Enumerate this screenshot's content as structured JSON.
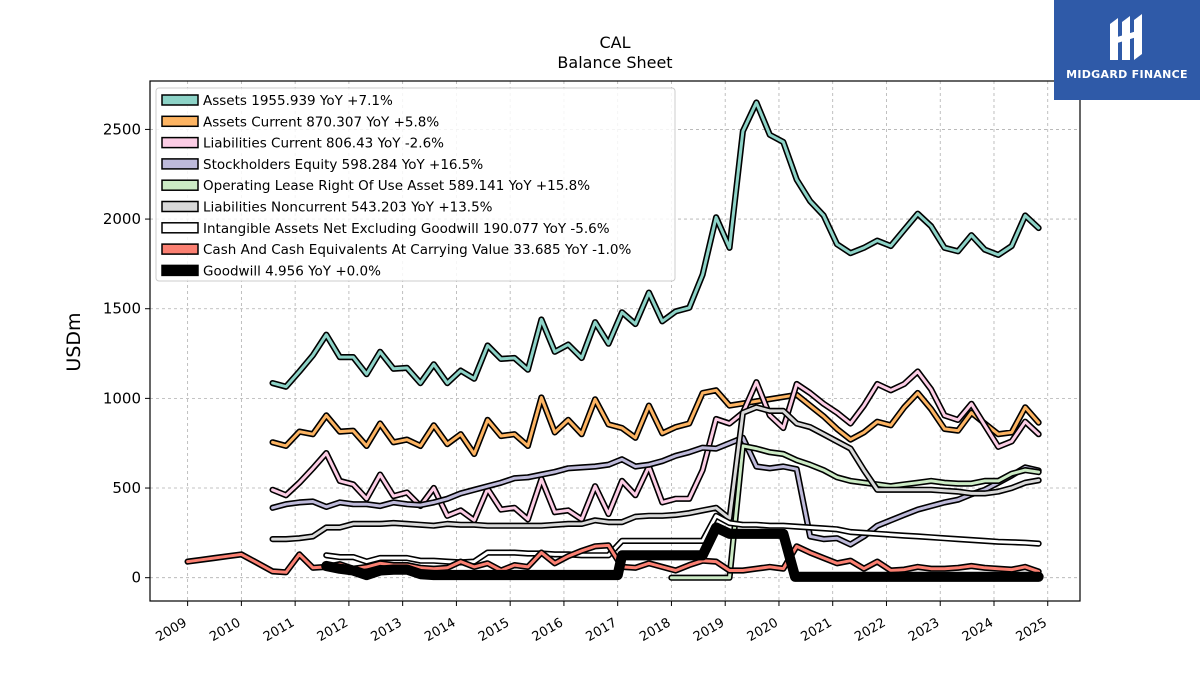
{
  "chart_data": {
    "type": "line",
    "title": "CAL",
    "subtitle": "Balance  Sheet",
    "ylabel": "USDm",
    "xlim": [
      2008.3,
      2025.6
    ],
    "ylim": [
      -130,
      2770
    ],
    "yticks": [
      0,
      500,
      1000,
      1500,
      2000,
      2500
    ],
    "xticks": [
      "2009",
      "2010",
      "2011",
      "2012",
      "2013",
      "2014",
      "2015",
      "2016",
      "2017",
      "2018",
      "2019",
      "2020",
      "2021",
      "2022",
      "2023",
      "2024",
      "2025"
    ],
    "grid": true,
    "legend_position": "top-left",
    "series": [
      {
        "name": "Assets",
        "legend": "Assets  1955.939 YoY +7.1%",
        "color": "#8dd3c7",
        "width": 3,
        "x": [
          2010.58,
          2010.83,
          2011.08,
          2011.33,
          2011.58,
          2011.83,
          2012.08,
          2012.33,
          2012.58,
          2012.83,
          2013.08,
          2013.33,
          2013.58,
          2013.83,
          2014.08,
          2014.33,
          2014.58,
          2014.83,
          2015.08,
          2015.33,
          2015.58,
          2015.83,
          2016.08,
          2016.33,
          2016.58,
          2016.83,
          2017.08,
          2017.33,
          2017.58,
          2017.83,
          2018.08,
          2018.33,
          2018.58,
          2018.83,
          2019.08,
          2019.33,
          2019.58,
          2019.83,
          2020.08,
          2020.33,
          2020.58,
          2020.83,
          2021.08,
          2021.33,
          2021.58,
          2021.83,
          2022.08,
          2022.33,
          2022.58,
          2022.83,
          2023.08,
          2023.33,
          2023.58,
          2023.83,
          2024.08,
          2024.33,
          2024.58,
          2024.83
        ],
        "y": [
          1085,
          1065,
          1150,
          1240,
          1355,
          1230,
          1230,
          1135,
          1260,
          1165,
          1170,
          1085,
          1190,
          1085,
          1155,
          1110,
          1295,
          1220,
          1225,
          1160,
          1440,
          1260,
          1300,
          1225,
          1425,
          1305,
          1480,
          1415,
          1590,
          1430,
          1485,
          1505,
          1690,
          2010,
          1840,
          2490,
          2650,
          2470,
          2430,
          2220,
          2100,
          2020,
          1860,
          1810,
          1840,
          1880,
          1850,
          1940,
          2030,
          1960,
          1840,
          1820,
          1910,
          1830,
          1800,
          1850,
          2020,
          1950
        ]
      },
      {
        "name": "Assets Current",
        "legend": "Assets Current  870.307 YoY +5.8%",
        "color": "#fdb462",
        "width": 3,
        "x": [
          2010.58,
          2010.83,
          2011.08,
          2011.33,
          2011.58,
          2011.83,
          2012.08,
          2012.33,
          2012.58,
          2012.83,
          2013.08,
          2013.33,
          2013.58,
          2013.83,
          2014.08,
          2014.33,
          2014.58,
          2014.83,
          2015.08,
          2015.33,
          2015.58,
          2015.83,
          2016.08,
          2016.33,
          2016.58,
          2016.83,
          2017.08,
          2017.33,
          2017.58,
          2017.83,
          2018.08,
          2018.33,
          2018.58,
          2018.83,
          2019.08,
          2020.33,
          2020.58,
          2020.83,
          2021.08,
          2021.33,
          2021.58,
          2021.83,
          2022.08,
          2022.33,
          2022.58,
          2022.83,
          2023.08,
          2023.33,
          2023.58,
          2023.83,
          2024.08,
          2024.33,
          2024.58,
          2024.83
        ],
        "y": [
          755,
          735,
          815,
          800,
          905,
          815,
          820,
          735,
          860,
          755,
          770,
          735,
          850,
          745,
          800,
          690,
          880,
          790,
          800,
          735,
          1005,
          810,
          880,
          800,
          995,
          855,
          835,
          780,
          960,
          805,
          840,
          860,
          1030,
          1045,
          960,
          1020,
          960,
          900,
          830,
          770,
          810,
          870,
          850,
          950,
          1030,
          940,
          830,
          820,
          920,
          860,
          800,
          810,
          950,
          865
        ]
      },
      {
        "name": "Liabilities Current",
        "legend": "Liabilities Current  806.43 YoY -2.6%",
        "color": "#fccde5",
        "width": 3,
        "x": [
          2010.58,
          2010.83,
          2011.08,
          2011.33,
          2011.58,
          2011.83,
          2012.08,
          2012.33,
          2012.58,
          2012.83,
          2013.08,
          2013.33,
          2013.58,
          2013.83,
          2014.08,
          2014.33,
          2014.58,
          2014.83,
          2015.08,
          2015.33,
          2015.58,
          2015.83,
          2016.08,
          2016.33,
          2016.58,
          2016.83,
          2017.08,
          2017.33,
          2017.58,
          2017.83,
          2018.08,
          2018.33,
          2018.58,
          2018.83,
          2019.08,
          2019.33,
          2019.58,
          2019.83,
          2020.08,
          2020.33,
          2020.58,
          2020.83,
          2021.08,
          2021.33,
          2021.58,
          2021.83,
          2022.08,
          2022.33,
          2022.58,
          2022.83,
          2023.08,
          2023.33,
          2023.58,
          2023.83,
          2024.08,
          2024.33,
          2024.58,
          2024.83
        ],
        "y": [
          490,
          460,
          530,
          610,
          695,
          540,
          520,
          440,
          575,
          455,
          475,
          400,
          500,
          345,
          375,
          320,
          495,
          380,
          390,
          325,
          550,
          365,
          375,
          325,
          510,
          355,
          540,
          460,
          620,
          420,
          440,
          440,
          600,
          885,
          860,
          920,
          1090,
          905,
          835,
          1080,
          1030,
          970,
          920,
          860,
          960,
          1080,
          1045,
          1080,
          1150,
          1050,
          905,
          880,
          970,
          850,
          730,
          760,
          870,
          800
        ]
      },
      {
        "name": "Stockholders Equity",
        "legend": "Stockholders Equity  598.284 YoY +16.5%",
        "color": "#bebada",
        "width": 3,
        "x": [
          2010.58,
          2010.83,
          2011.08,
          2011.33,
          2011.58,
          2011.83,
          2012.08,
          2012.33,
          2012.58,
          2012.83,
          2013.08,
          2013.33,
          2013.58,
          2013.83,
          2014.08,
          2014.33,
          2014.58,
          2014.83,
          2015.08,
          2015.33,
          2015.58,
          2015.83,
          2016.08,
          2016.33,
          2016.58,
          2016.83,
          2017.08,
          2017.33,
          2017.58,
          2017.83,
          2018.08,
          2018.33,
          2018.58,
          2018.83,
          2019.08,
          2019.33,
          2019.58,
          2019.83,
          2020.08,
          2020.33,
          2020.58,
          2020.83,
          2021.08,
          2021.33,
          2021.58,
          2021.83,
          2022.08,
          2022.33,
          2022.58,
          2022.83,
          2023.08,
          2023.33,
          2023.58,
          2023.83,
          2024.08,
          2024.33,
          2024.58,
          2024.83
        ],
        "y": [
          390,
          410,
          420,
          425,
          395,
          420,
          410,
          410,
          400,
          420,
          410,
          405,
          420,
          440,
          470,
          490,
          510,
          530,
          555,
          560,
          575,
          590,
          610,
          615,
          620,
          630,
          660,
          620,
          630,
          650,
          680,
          700,
          725,
          720,
          750,
          780,
          620,
          610,
          620,
          605,
          230,
          215,
          220,
          185,
          230,
          290,
          320,
          350,
          380,
          400,
          420,
          435,
          465,
          490,
          530,
          570,
          615,
          598
        ]
      },
      {
        "name": "Operating Lease Right Of Use Asset",
        "legend": "Operating Lease Right Of Use Asset  589.141 YoY +15.8%",
        "color": "#ccebc5",
        "width": 3,
        "x": [
          2018.0,
          2018.3,
          2018.58,
          2018.83,
          2019.0,
          2019.08,
          2019.33,
          2019.58,
          2019.83,
          2020.08,
          2020.33,
          2020.58,
          2020.83,
          2021.08,
          2021.33,
          2021.58,
          2021.83,
          2022.08,
          2022.33,
          2022.58,
          2022.83,
          2023.08,
          2023.33,
          2023.58,
          2023.83,
          2024.08,
          2024.33,
          2024.58,
          2024.83
        ],
        "y": [
          0,
          0,
          0,
          0,
          0,
          0,
          735,
          720,
          700,
          690,
          655,
          630,
          600,
          560,
          540,
          530,
          520,
          510,
          520,
          530,
          540,
          530,
          525,
          525,
          540,
          540,
          580,
          600,
          589
        ]
      },
      {
        "name": "Liabilities Noncurrent",
        "legend": "Liabilities Noncurrent  543.203 YoY +13.5%",
        "color": "#d9d9d9",
        "width": 3,
        "x": [
          2010.58,
          2010.83,
          2011.08,
          2011.33,
          2011.58,
          2011.83,
          2012.08,
          2012.33,
          2012.58,
          2012.83,
          2013.08,
          2013.33,
          2013.58,
          2013.83,
          2014.08,
          2014.33,
          2014.58,
          2014.83,
          2015.08,
          2015.33,
          2015.58,
          2015.83,
          2016.08,
          2016.33,
          2016.58,
          2016.83,
          2017.08,
          2017.33,
          2017.58,
          2017.83,
          2018.08,
          2018.33,
          2018.58,
          2018.83,
          2019.08,
          2019.33,
          2019.58,
          2019.83,
          2020.08,
          2020.33,
          2020.58,
          2020.83,
          2021.08,
          2021.33,
          2021.58,
          2021.83,
          2022.08,
          2022.33,
          2022.58,
          2022.83,
          2023.08,
          2023.33,
          2023.58,
          2023.83,
          2024.08,
          2024.33,
          2024.58,
          2024.83
        ],
        "y": [
          215,
          215,
          220,
          230,
          280,
          280,
          300,
          300,
          300,
          305,
          300,
          295,
          290,
          300,
          295,
          295,
          290,
          290,
          290,
          290,
          290,
          295,
          300,
          300,
          320,
          310,
          310,
          340,
          345,
          345,
          350,
          360,
          375,
          390,
          330,
          920,
          950,
          930,
          930,
          860,
          840,
          800,
          760,
          720,
          600,
          490,
          490,
          490,
          490,
          490,
          485,
          480,
          470,
          470,
          480,
          500,
          530,
          543
        ]
      },
      {
        "name": "Intangible Assets Net Excluding Goodwill",
        "legend": "Intangible Assets Net Excluding Goodwill  190.077 YoY -5.6%",
        "color": "#ffffff",
        "width": 3,
        "x": [
          2011.58,
          2011.83,
          2012.08,
          2012.33,
          2012.58,
          2012.83,
          2013.08,
          2013.33,
          2013.58,
          2013.83,
          2014.08,
          2014.33,
          2014.58,
          2014.83,
          2015.08,
          2015.33,
          2015.58,
          2015.83,
          2016.08,
          2016.33,
          2016.58,
          2016.83,
          2017.08,
          2017.33,
          2017.58,
          2017.83,
          2018.08,
          2018.33,
          2018.58,
          2018.83,
          2019.08,
          2019.33,
          2019.58,
          2019.83,
          2020.08,
          2020.33,
          2020.58,
          2020.83,
          2021.08,
          2021.33,
          2021.58,
          2021.83,
          2022.08,
          2022.33,
          2022.58,
          2022.83,
          2023.08,
          2023.33,
          2023.58,
          2023.83,
          2024.08,
          2024.33,
          2024.58,
          2024.83
        ],
        "y": [
          125,
          115,
          115,
          90,
          110,
          110,
          110,
          95,
          95,
          90,
          85,
          90,
          140,
          140,
          140,
          135,
          135,
          130,
          130,
          125,
          125,
          125,
          205,
          205,
          205,
          205,
          205,
          205,
          205,
          345,
          305,
          295,
          295,
          290,
          290,
          285,
          280,
          275,
          270,
          255,
          250,
          245,
          240,
          235,
          230,
          225,
          220,
          215,
          210,
          205,
          200,
          198,
          195,
          190
        ]
      },
      {
        "name": "Cash And Cash Equivalents At Carrying Value",
        "legend": "Cash And Cash Equivalents At Carrying Value  33.685 YoY -1.0%",
        "color": "#fb8072",
        "width": 3,
        "x": [
          2009.0,
          2009.25,
          2009.5,
          2009.75,
          2010.0,
          2010.25,
          2010.58,
          2010.83,
          2011.08,
          2011.33,
          2011.58,
          2011.83,
          2012.08,
          2012.33,
          2012.58,
          2012.83,
          2013.08,
          2013.33,
          2013.58,
          2013.83,
          2014.08,
          2014.33,
          2014.58,
          2014.83,
          2015.08,
          2015.33,
          2015.58,
          2015.83,
          2016.08,
          2016.33,
          2016.58,
          2016.83,
          2017.08,
          2017.33,
          2017.58,
          2017.83,
          2018.08,
          2018.33,
          2018.58,
          2018.83,
          2019.08,
          2019.33,
          2019.58,
          2019.83,
          2020.08,
          2020.33,
          2020.58,
          2020.83,
          2021.08,
          2021.33,
          2021.58,
          2021.83,
          2022.08,
          2022.33,
          2022.58,
          2022.83,
          2023.08,
          2023.33,
          2023.58,
          2023.83,
          2024.08,
          2024.33,
          2024.58,
          2024.83
        ],
        "y": [
          90,
          100,
          110,
          120,
          130,
          90,
          35,
          30,
          130,
          55,
          60,
          75,
          50,
          60,
          80,
          70,
          70,
          55,
          50,
          55,
          90,
          60,
          80,
          40,
          70,
          60,
          140,
          80,
          120,
          150,
          175,
          180,
          60,
          55,
          80,
          60,
          40,
          70,
          95,
          90,
          40,
          40,
          50,
          60,
          50,
          175,
          140,
          110,
          80,
          95,
          50,
          90,
          40,
          45,
          60,
          50,
          50,
          55,
          65,
          55,
          50,
          45,
          60,
          34
        ]
      },
      {
        "name": "Goodwill",
        "legend": "Goodwill  4.956 YoY +0.0%",
        "color": "#000000",
        "width": 7,
        "x": [
          2011.58,
          2011.83,
          2012.08,
          2012.33,
          2012.58,
          2012.83,
          2013.08,
          2013.33,
          2013.58,
          2013.83,
          2014.08,
          2014.33,
          2014.58,
          2014.83,
          2015.08,
          2015.33,
          2015.58,
          2015.83,
          2016.08,
          2016.33,
          2016.58,
          2016.83,
          2017.0,
          2017.08,
          2017.33,
          2017.58,
          2017.83,
          2018.08,
          2018.33,
          2018.58,
          2018.83,
          2019.08,
          2019.33,
          2019.58,
          2019.83,
          2020.08,
          2020.3,
          2020.58,
          2020.83,
          2021.08,
          2021.33,
          2021.58,
          2021.83,
          2022.08,
          2022.33,
          2022.58,
          2022.83,
          2023.08,
          2023.33,
          2023.58,
          2023.83,
          2024.08,
          2024.33,
          2024.58,
          2024.83
        ],
        "y": [
          65,
          50,
          40,
          15,
          40,
          45,
          45,
          20,
          15,
          15,
          15,
          15,
          15,
          15,
          15,
          15,
          15,
          15,
          15,
          15,
          15,
          15,
          15,
          125,
          125,
          125,
          125,
          125,
          125,
          125,
          280,
          245,
          245,
          245,
          245,
          245,
          5,
          5,
          5,
          5,
          5,
          5,
          5,
          5,
          5,
          5,
          5,
          5,
          5,
          5,
          5,
          5,
          5,
          5,
          5
        ]
      }
    ]
  },
  "logo": {
    "text": "MIDGARD FINANCE"
  }
}
